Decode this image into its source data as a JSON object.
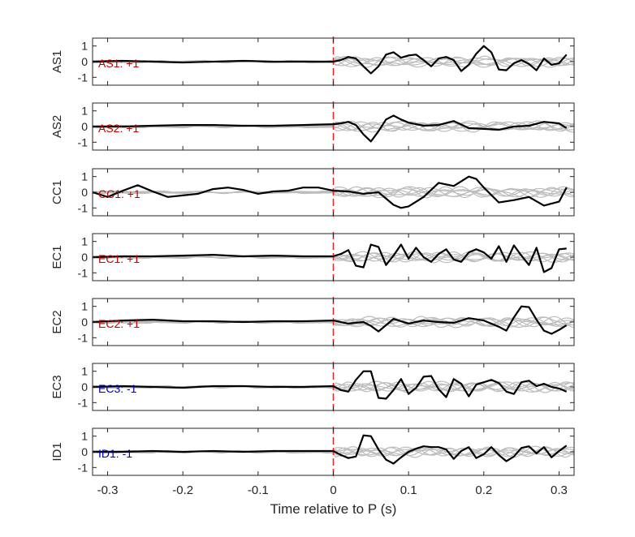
{
  "chart_data": {
    "type": "line",
    "xlabel": "Time relative to P (s)",
    "xlim": [
      -0.32,
      0.32
    ],
    "xticks": [
      -0.3,
      -0.2,
      -0.1,
      0,
      0.1,
      0.2,
      0.3
    ],
    "xtick_labels": [
      "-0.3",
      "-0.2",
      "-0.1",
      "0",
      "0.1",
      "0.2",
      "0.3"
    ],
    "ylim": [
      -1.5,
      1.5
    ],
    "yticks": [
      -1,
      0,
      1
    ],
    "ytick_labels": [
      "-1",
      "0",
      "1"
    ],
    "marker_time": 0,
    "colors": {
      "main_trace": "#000000",
      "gray_traces": "#bdbdbd",
      "marker_line": "#e8231f",
      "positive_label": "#c00000",
      "negative_label": "#0000b4"
    },
    "panels": [
      {
        "ylabel": "AS1",
        "annotation": "AS1: +1",
        "polarity": "positive",
        "series": [
          {
            "x": [
              -0.32,
              -0.28,
              -0.24,
              -0.2,
              -0.16,
              -0.12,
              -0.08,
              -0.04,
              0,
              0.01,
              0.02,
              0.03,
              0.04,
              0.05,
              0.06,
              0.07,
              0.08,
              0.09,
              0.1,
              0.11,
              0.12,
              0.13,
              0.14,
              0.15,
              0.16,
              0.17,
              0.18,
              0.19,
              0.2,
              0.21,
              0.22,
              0.23,
              0.24,
              0.25,
              0.26,
              0.27,
              0.28,
              0.29,
              0.3,
              0.31
            ],
            "y": [
              0,
              0.05,
              0,
              -0.05,
              0,
              0.05,
              0,
              0,
              0,
              0.1,
              0.3,
              0.2,
              -0.3,
              -0.75,
              -0.3,
              0.45,
              0.6,
              0.25,
              0.4,
              0.45,
              0.1,
              -0.3,
              0.2,
              0.3,
              0.1,
              -0.6,
              -0.2,
              0.5,
              1.0,
              0.6,
              -0.5,
              -0.55,
              -0.1,
              0.1,
              -0.15,
              -0.55,
              0.2,
              -0.2,
              -0.1,
              0.45
            ]
          }
        ]
      },
      {
        "ylabel": "AS2",
        "annotation": "AS2: +1",
        "polarity": "positive",
        "series": [
          {
            "x": [
              -0.32,
              -0.28,
              -0.24,
              -0.2,
              -0.16,
              -0.12,
              -0.08,
              -0.04,
              0,
              0.01,
              0.02,
              0.03,
              0.04,
              0.05,
              0.06,
              0.07,
              0.08,
              0.09,
              0.1,
              0.12,
              0.14,
              0.16,
              0.18,
              0.2,
              0.22,
              0.24,
              0.26,
              0.28,
              0.3,
              0.31
            ],
            "y": [
              0,
              0,
              0.05,
              0.1,
              0.1,
              0.05,
              0.05,
              0.1,
              0.15,
              0.2,
              0.3,
              0.1,
              -0.5,
              -0.95,
              -0.3,
              0.45,
              0.7,
              0.45,
              0.25,
              0.05,
              0.1,
              0.35,
              -0.1,
              -0.15,
              -0.2,
              0.0,
              0.05,
              0.3,
              0.2,
              -0.1
            ]
          }
        ]
      },
      {
        "ylabel": "CC1",
        "annotation": "CC1: +1",
        "polarity": "positive",
        "series": [
          {
            "x": [
              -0.32,
              -0.3,
              -0.28,
              -0.26,
              -0.24,
              -0.22,
              -0.2,
              -0.18,
              -0.16,
              -0.14,
              -0.12,
              -0.1,
              -0.08,
              -0.06,
              -0.04,
              -0.02,
              0,
              0.02,
              0.04,
              0.06,
              0.08,
              0.09,
              0.1,
              0.12,
              0.14,
              0.16,
              0.18,
              0.19,
              0.2,
              0.22,
              0.24,
              0.26,
              0.28,
              0.3,
              0.31
            ],
            "y": [
              0,
              -0.3,
              0.1,
              0.45,
              0.05,
              -0.3,
              -0.2,
              -0.1,
              0.2,
              0.3,
              0.15,
              -0.1,
              0.05,
              0.1,
              0.3,
              0.3,
              0.1,
              0.05,
              -0.1,
              0.0,
              -0.8,
              -1.0,
              -0.9,
              -0.3,
              0.6,
              0.4,
              1.0,
              0.85,
              0.3,
              -0.65,
              -0.5,
              -0.3,
              -0.85,
              -0.6,
              0.3
            ]
          }
        ]
      },
      {
        "ylabel": "EC1",
        "annotation": "EC1: +1",
        "polarity": "positive",
        "series": [
          {
            "x": [
              -0.32,
              -0.28,
              -0.24,
              -0.2,
              -0.16,
              -0.12,
              -0.08,
              -0.04,
              0,
              0.01,
              0.02,
              0.03,
              0.04,
              0.05,
              0.06,
              0.07,
              0.08,
              0.09,
              0.1,
              0.11,
              0.12,
              0.13,
              0.14,
              0.15,
              0.16,
              0.17,
              0.18,
              0.19,
              0.2,
              0.21,
              0.22,
              0.23,
              0.24,
              0.25,
              0.26,
              0.27,
              0.28,
              0.29,
              0.3,
              0.31
            ],
            "y": [
              0,
              0.05,
              0.05,
              0.1,
              0.15,
              0.05,
              0.1,
              0.05,
              0.05,
              0.2,
              0.45,
              -0.55,
              -0.65,
              0.8,
              0.65,
              -0.5,
              0.1,
              0.8,
              -0.1,
              0.6,
              0.0,
              -0.3,
              0.2,
              0.5,
              -0.15,
              -0.3,
              0.3,
              0.5,
              0.3,
              -0.1,
              0.7,
              -0.3,
              0.75,
              0.1,
              -0.5,
              0.6,
              -0.95,
              -0.7,
              0.5,
              0.55
            ]
          }
        ]
      },
      {
        "ylabel": "EC2",
        "annotation": "EC2: +1",
        "polarity": "positive",
        "series": [
          {
            "x": [
              -0.32,
              -0.28,
              -0.24,
              -0.2,
              -0.16,
              -0.12,
              -0.08,
              -0.04,
              0,
              0.02,
              0.04,
              0.05,
              0.06,
              0.07,
              0.08,
              0.1,
              0.12,
              0.14,
              0.16,
              0.18,
              0.2,
              0.22,
              0.23,
              0.24,
              0.25,
              0.26,
              0.27,
              0.28,
              0.29,
              0.3,
              0.31
            ],
            "y": [
              0,
              0.1,
              0.15,
              0.05,
              0.05,
              0.0,
              0.05,
              0.05,
              0.1,
              -0.1,
              0.0,
              -0.25,
              -0.6,
              -0.2,
              0.2,
              -0.1,
              0.1,
              0.0,
              -0.05,
              0.25,
              0.1,
              -0.3,
              -0.55,
              0.3,
              1.0,
              0.95,
              0.15,
              -0.55,
              -0.75,
              -0.5,
              -0.2
            ]
          }
        ]
      },
      {
        "ylabel": "EC3",
        "annotation": "EC3: -1",
        "polarity": "negative",
        "series": [
          {
            "x": [
              -0.32,
              -0.28,
              -0.24,
              -0.2,
              -0.16,
              -0.12,
              -0.08,
              -0.04,
              0,
              0.01,
              0.02,
              0.03,
              0.04,
              0.05,
              0.06,
              0.07,
              0.08,
              0.09,
              0.1,
              0.11,
              0.12,
              0.13,
              0.14,
              0.15,
              0.16,
              0.17,
              0.18,
              0.19,
              0.2,
              0.21,
              0.22,
              0.23,
              0.24,
              0.25,
              0.26,
              0.27,
              0.28,
              0.29,
              0.3,
              0.31
            ],
            "y": [
              0,
              0.05,
              0.0,
              -0.05,
              0.05,
              0.05,
              0.0,
              0.0,
              0.05,
              -0.2,
              -0.3,
              0.45,
              1.0,
              1.0,
              -0.7,
              -0.75,
              -0.2,
              0.5,
              -0.45,
              -0.05,
              0.65,
              0.7,
              -0.15,
              -0.65,
              0.5,
              0.2,
              -0.6,
              0.15,
              0.3,
              0.45,
              0.25,
              -0.3,
              -0.45,
              0.3,
              0.4,
              0.05,
              0.2,
              0.0,
              -0.1,
              -0.3
            ]
          }
        ]
      },
      {
        "ylabel": "ID1",
        "annotation": "ID1: -1",
        "polarity": "negative",
        "series": [
          {
            "x": [
              -0.32,
              -0.28,
              -0.24,
              -0.2,
              -0.16,
              -0.12,
              -0.08,
              -0.04,
              0,
              0.01,
              0.02,
              0.03,
              0.04,
              0.05,
              0.06,
              0.07,
              0.08,
              0.09,
              0.1,
              0.11,
              0.12,
              0.13,
              0.14,
              0.15,
              0.16,
              0.17,
              0.18,
              0.19,
              0.2,
              0.21,
              0.22,
              0.23,
              0.24,
              0.25,
              0.26,
              0.27,
              0.28,
              0.29,
              0.3,
              0.31
            ],
            "y": [
              0,
              0.0,
              0.05,
              0.0,
              0.05,
              0.0,
              0.05,
              0.05,
              0.05,
              -0.2,
              -0.4,
              -0.3,
              1.05,
              1.0,
              0.15,
              -0.5,
              -0.75,
              -0.35,
              0.0,
              0.2,
              0.35,
              0.3,
              0.3,
              0.15,
              -0.45,
              0.05,
              0.3,
              -0.4,
              -0.15,
              0.3,
              -0.2,
              -0.6,
              -0.3,
              0.25,
              0.35,
              -0.1,
              0.3,
              -0.35,
              0.05,
              0.4
            ]
          }
        ]
      }
    ]
  }
}
